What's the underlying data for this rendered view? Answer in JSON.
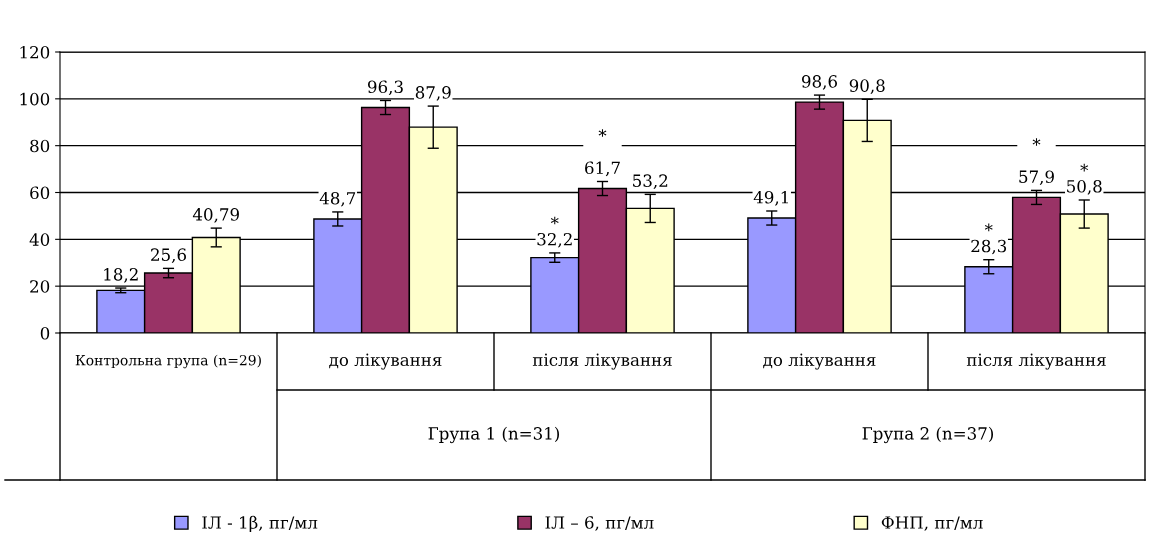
{
  "chart_data": {
    "type": "bar",
    "categories": [
      "Контрольна група (n=29)",
      "до лікування",
      "після лікування",
      "до лікування",
      "після лікування"
    ],
    "series": [
      {
        "name": "ІЛ - 1β, пг/мл",
        "color": "#9999ff",
        "values": [
          18.2,
          48.7,
          32.2,
          49.1,
          28.3
        ],
        "errors": [
          1,
          3,
          2,
          3,
          3
        ],
        "value_labels": [
          "18,2",
          "48,7",
          "*\n32,2",
          "49,1",
          "*\n28,3"
        ]
      },
      {
        "name": "ІЛ – 6, пг/мл",
        "color": "#993366",
        "values": [
          25.6,
          96.3,
          61.7,
          98.6,
          57.9
        ],
        "errors": [
          2,
          3,
          3,
          3,
          3
        ],
        "value_labels": [
          "25,6",
          "96,3",
          "*\n\n61,7",
          "98,6",
          "*\n\n57,9"
        ]
      },
      {
        "name": "ФНП, пг/мл",
        "color": "#ffffcc",
        "values": [
          40.79,
          87.9,
          53.2,
          90.8,
          50.8
        ],
        "errors": [
          4,
          9,
          6,
          9,
          6
        ],
        "value_labels": [
          "40,79",
          "87,9",
          "53,2",
          "90,8",
          "*\n50,8"
        ]
      }
    ],
    "annotations": [
      "Група 1 (n=31)",
      "Група 2 (n=37)"
    ],
    "ylim": [
      0,
      120
    ],
    "yticks": [
      0,
      20,
      40,
      60,
      80,
      100,
      120
    ],
    "grid": "y",
    "legend": "bottom"
  }
}
